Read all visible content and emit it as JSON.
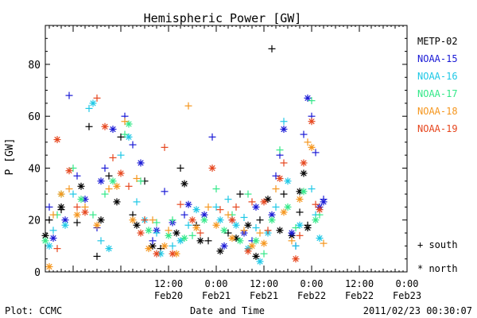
{
  "page": {
    "footer_left": "Plot: CCMC",
    "footer_right": "2011/02/23 00:30:07"
  },
  "chart_data": {
    "type": "scatter",
    "title": "Hemispheric Power [GW]",
    "xlabel": "Date and Time",
    "ylabel": "P [GW]",
    "ylim": [
      0,
      95
    ],
    "y_ticks": [
      0,
      20,
      40,
      60,
      80
    ],
    "xlim": [
      "2011-02-19T05:00",
      "2011-02-23T00:00"
    ],
    "x_tick_labels": [
      {
        "time": "12:00",
        "date": "Feb20",
        "t": "2011-02-20T12:00"
      },
      {
        "time": "0:00",
        "date": "Feb21",
        "t": "2011-02-21T00:00"
      },
      {
        "time": "12:00",
        "date": "Feb21",
        "t": "2011-02-21T12:00"
      },
      {
        "time": "0:00",
        "date": "Feb22",
        "t": "2011-02-22T00:00"
      },
      {
        "time": "12:00",
        "date": "Feb22",
        "t": "2011-02-22T12:00"
      },
      {
        "time": "0:00",
        "date": "Feb23",
        "t": "2011-02-23T00:00"
      }
    ],
    "grid": false,
    "legend_position": "right",
    "marker_legend": [
      {
        "label": "+ south",
        "marker": "+"
      },
      {
        "label": "* north",
        "marker": "*"
      }
    ],
    "series": [
      {
        "name": "METP-02",
        "color": "#000000",
        "south": [
          {
            "x": "2011-02-19T06:00",
            "y": 20
          },
          {
            "x": "2011-02-19T09:00",
            "y": 24
          },
          {
            "x": "2011-02-19T13:00",
            "y": 19
          },
          {
            "x": "2011-02-19T16:00",
            "y": 56
          },
          {
            "x": "2011-02-19T18:00",
            "y": 6
          },
          {
            "x": "2011-02-19T21:00",
            "y": 37
          },
          {
            "x": "2011-02-20T00:00",
            "y": 52
          },
          {
            "x": "2011-02-20T03:00",
            "y": 22
          },
          {
            "x": "2011-02-20T06:00",
            "y": 35
          },
          {
            "x": "2011-02-20T10:00",
            "y": 9
          },
          {
            "x": "2011-02-20T15:00",
            "y": 40
          },
          {
            "x": "2011-02-20T19:00",
            "y": 18
          },
          {
            "x": "2011-02-20T22:00",
            "y": 12
          },
          {
            "x": "2011-02-21T03:00",
            "y": 15
          },
          {
            "x": "2011-02-21T06:00",
            "y": 30
          },
          {
            "x": "2011-02-21T11:00",
            "y": 20
          },
          {
            "x": "2011-02-21T14:00",
            "y": 86
          },
          {
            "x": "2011-02-21T17:00",
            "y": 30
          },
          {
            "x": "2011-02-21T21:00",
            "y": 23
          },
          {
            "x": "2011-02-21T23:00",
            "y": 18
          }
        ],
        "north": [
          {
            "x": "2011-02-19T05:00",
            "y": 14
          },
          {
            "x": "2011-02-19T09:00",
            "y": 25
          },
          {
            "x": "2011-02-19T14:00",
            "y": 33
          },
          {
            "x": "2011-02-19T19:00",
            "y": 20
          },
          {
            "x": "2011-02-19T23:00",
            "y": 27
          },
          {
            "x": "2011-02-20T04:00",
            "y": 18
          },
          {
            "x": "2011-02-20T08:00",
            "y": 10
          },
          {
            "x": "2011-02-20T14:00",
            "y": 15
          },
          {
            "x": "2011-02-20T16:00",
            "y": 34
          },
          {
            "x": "2011-02-20T20:00",
            "y": 12
          },
          {
            "x": "2011-02-21T01:00",
            "y": 8
          },
          {
            "x": "2011-02-21T05:00",
            "y": 13
          },
          {
            "x": "2011-02-21T08:00",
            "y": 18
          },
          {
            "x": "2011-02-21T10:00",
            "y": 6
          },
          {
            "x": "2011-02-21T13:00",
            "y": 28
          },
          {
            "x": "2011-02-21T16:00",
            "y": 16
          },
          {
            "x": "2011-02-21T19:00",
            "y": 14
          },
          {
            "x": "2011-02-21T21:00",
            "y": 31
          },
          {
            "x": "2011-02-21T22:00",
            "y": 38
          },
          {
            "x": "2011-02-21T23:00",
            "y": 17
          }
        ]
      },
      {
        "name": "NOAA-15",
        "color": "#1a1ad6",
        "south": [
          {
            "x": "2011-02-19T06:00",
            "y": 25
          },
          {
            "x": "2011-02-19T11:00",
            "y": 68
          },
          {
            "x": "2011-02-19T13:00",
            "y": 37
          },
          {
            "x": "2011-02-19T18:00",
            "y": 17
          },
          {
            "x": "2011-02-19T20:00",
            "y": 40
          },
          {
            "x": "2011-02-20T01:00",
            "y": 60
          },
          {
            "x": "2011-02-20T03:00",
            "y": 49
          },
          {
            "x": "2011-02-20T08:00",
            "y": 12
          },
          {
            "x": "2011-02-20T11:00",
            "y": 31
          },
          {
            "x": "2011-02-20T16:00",
            "y": 22
          },
          {
            "x": "2011-02-20T23:00",
            "y": 52
          },
          {
            "x": "2011-02-21T04:00",
            "y": 20
          },
          {
            "x": "2011-02-21T09:00",
            "y": 12
          },
          {
            "x": "2011-02-21T15:00",
            "y": 37
          },
          {
            "x": "2011-02-21T16:00",
            "y": 45
          },
          {
            "x": "2011-02-21T20:00",
            "y": 10
          },
          {
            "x": "2011-02-21T22:00",
            "y": 53
          },
          {
            "x": "2011-02-22T00:00",
            "y": 60
          },
          {
            "x": "2011-02-22T01:00",
            "y": 46
          },
          {
            "x": "2011-02-22T03:00",
            "y": 28
          }
        ],
        "north": [
          {
            "x": "2011-02-19T07:00",
            "y": 13
          },
          {
            "x": "2011-02-19T10:00",
            "y": 20
          },
          {
            "x": "2011-02-19T15:00",
            "y": 28
          },
          {
            "x": "2011-02-19T19:00",
            "y": 35
          },
          {
            "x": "2011-02-19T22:00",
            "y": 55
          },
          {
            "x": "2011-02-20T05:00",
            "y": 42
          },
          {
            "x": "2011-02-20T09:00",
            "y": 16
          },
          {
            "x": "2011-02-20T13:00",
            "y": 19
          },
          {
            "x": "2011-02-20T17:00",
            "y": 26
          },
          {
            "x": "2011-02-20T21:00",
            "y": 22
          },
          {
            "x": "2011-02-21T02:00",
            "y": 10
          },
          {
            "x": "2011-02-21T07:00",
            "y": 15
          },
          {
            "x": "2011-02-21T10:00",
            "y": 25
          },
          {
            "x": "2011-02-21T14:00",
            "y": 22
          },
          {
            "x": "2011-02-21T17:00",
            "y": 55
          },
          {
            "x": "2011-02-21T19:00",
            "y": 15
          },
          {
            "x": "2011-02-21T23:00",
            "y": 67
          },
          {
            "x": "2011-02-22T02:00",
            "y": 25
          },
          {
            "x": "2011-02-22T03:00",
            "y": 27
          }
        ]
      },
      {
        "name": "NOAA-16",
        "color": "#1ec8e6",
        "south": [
          {
            "x": "2011-02-19T07:00",
            "y": 16
          },
          {
            "x": "2011-02-19T12:00",
            "y": 30
          },
          {
            "x": "2011-02-19T16:00",
            "y": 63
          },
          {
            "x": "2011-02-19T19:00",
            "y": 12
          },
          {
            "x": "2011-02-20T00:00",
            "y": 45
          },
          {
            "x": "2011-02-20T04:00",
            "y": 27
          },
          {
            "x": "2011-02-20T09:00",
            "y": 15
          },
          {
            "x": "2011-02-20T13:00",
            "y": 10
          },
          {
            "x": "2011-02-20T17:00",
            "y": 18
          },
          {
            "x": "2011-02-21T00:00",
            "y": 25
          },
          {
            "x": "2011-02-21T03:00",
            "y": 28
          },
          {
            "x": "2011-02-21T07:00",
            "y": 21
          },
          {
            "x": "2011-02-21T10:00",
            "y": 17
          },
          {
            "x": "2011-02-21T15:00",
            "y": 25
          },
          {
            "x": "2011-02-21T17:00",
            "y": 58
          },
          {
            "x": "2011-02-21T20:00",
            "y": 10
          },
          {
            "x": "2011-02-22T00:00",
            "y": 32
          },
          {
            "x": "2011-02-22T01:00",
            "y": 22
          }
        ],
        "north": [
          {
            "x": "2011-02-19T06:00",
            "y": 10
          },
          {
            "x": "2011-02-19T10:00",
            "y": 18
          },
          {
            "x": "2011-02-19T17:00",
            "y": 65
          },
          {
            "x": "2011-02-19T21:00",
            "y": 9
          },
          {
            "x": "2011-02-20T02:00",
            "y": 52
          },
          {
            "x": "2011-02-20T06:00",
            "y": 20
          },
          {
            "x": "2011-02-20T10:00",
            "y": 7
          },
          {
            "x": "2011-02-20T15:00",
            "y": 12
          },
          {
            "x": "2011-02-20T19:00",
            "y": 24
          },
          {
            "x": "2011-02-21T01:00",
            "y": 20
          },
          {
            "x": "2011-02-21T05:00",
            "y": 18
          },
          {
            "x": "2011-02-21T08:00",
            "y": 9
          },
          {
            "x": "2011-02-21T11:00",
            "y": 4
          },
          {
            "x": "2011-02-21T13:00",
            "y": 15
          },
          {
            "x": "2011-02-21T18:00",
            "y": 35
          },
          {
            "x": "2011-02-21T21:00",
            "y": 18
          },
          {
            "x": "2011-02-22T02:00",
            "y": 13
          }
        ]
      },
      {
        "name": "NOAA-17",
        "color": "#33e888",
        "south": [
          {
            "x": "2011-02-19T08:00",
            "y": 22
          },
          {
            "x": "2011-02-19T12:00",
            "y": 40
          },
          {
            "x": "2011-02-19T17:00",
            "y": 22
          },
          {
            "x": "2011-02-19T20:00",
            "y": 30
          },
          {
            "x": "2011-02-20T01:00",
            "y": 53
          },
          {
            "x": "2011-02-20T05:00",
            "y": 35
          },
          {
            "x": "2011-02-20T09:00",
            "y": 19
          },
          {
            "x": "2011-02-20T13:00",
            "y": 20
          },
          {
            "x": "2011-02-20T18:00",
            "y": 14
          },
          {
            "x": "2011-02-21T00:00",
            "y": 32
          },
          {
            "x": "2011-02-21T04:00",
            "y": 22
          },
          {
            "x": "2011-02-21T08:00",
            "y": 30
          },
          {
            "x": "2011-02-21T12:00",
            "y": 7
          },
          {
            "x": "2011-02-21T16:00",
            "y": 47
          },
          {
            "x": "2011-02-21T20:00",
            "y": 17
          },
          {
            "x": "2011-02-22T00:00",
            "y": 66
          },
          {
            "x": "2011-02-22T02:00",
            "y": 22
          }
        ],
        "north": [
          {
            "x": "2011-02-19T05:00",
            "y": 12
          },
          {
            "x": "2011-02-19T09:00",
            "y": 30
          },
          {
            "x": "2011-02-19T14:00",
            "y": 28
          },
          {
            "x": "2011-02-19T22:00",
            "y": 35
          },
          {
            "x": "2011-02-20T02:00",
            "y": 57
          },
          {
            "x": "2011-02-20T07:00",
            "y": 16
          },
          {
            "x": "2011-02-20T12:00",
            "y": 14
          },
          {
            "x": "2011-02-20T16:00",
            "y": 13
          },
          {
            "x": "2011-02-20T21:00",
            "y": 20
          },
          {
            "x": "2011-02-21T02:00",
            "y": 16
          },
          {
            "x": "2011-02-21T06:00",
            "y": 12
          },
          {
            "x": "2011-02-21T10:00",
            "y": 12
          },
          {
            "x": "2011-02-21T14:00",
            "y": 20
          },
          {
            "x": "2011-02-21T18:00",
            "y": 25
          },
          {
            "x": "2011-02-21T22:00",
            "y": 31
          },
          {
            "x": "2011-02-22T01:00",
            "y": 20
          }
        ]
      },
      {
        "name": "NOAA-18",
        "color": "#f5961e",
        "south": [
          {
            "x": "2011-02-19T07:00",
            "y": 22
          },
          {
            "x": "2011-02-19T11:00",
            "y": 32
          },
          {
            "x": "2011-02-19T15:00",
            "y": 25
          },
          {
            "x": "2011-02-19T21:00",
            "y": 32
          },
          {
            "x": "2011-02-20T01:00",
            "y": 58
          },
          {
            "x": "2011-02-20T04:00",
            "y": 36
          },
          {
            "x": "2011-02-20T08:00",
            "y": 20
          },
          {
            "x": "2011-02-20T12:00",
            "y": 16
          },
          {
            "x": "2011-02-20T17:00",
            "y": 64
          },
          {
            "x": "2011-02-20T22:00",
            "y": 25
          },
          {
            "x": "2011-02-21T03:00",
            "y": 22
          },
          {
            "x": "2011-02-21T07:00",
            "y": 16
          },
          {
            "x": "2011-02-21T11:00",
            "y": 15
          },
          {
            "x": "2011-02-21T15:00",
            "y": 32
          },
          {
            "x": "2011-02-21T19:00",
            "y": 12
          },
          {
            "x": "2011-02-21T23:00",
            "y": 50
          },
          {
            "x": "2011-02-22T03:00",
            "y": 11
          }
        ],
        "north": [
          {
            "x": "2011-02-19T06:00",
            "y": 2
          },
          {
            "x": "2011-02-19T09:00",
            "y": 30
          },
          {
            "x": "2011-02-19T13:00",
            "y": 22
          },
          {
            "x": "2011-02-19T18:00",
            "y": 18
          },
          {
            "x": "2011-02-19T23:00",
            "y": 33
          },
          {
            "x": "2011-02-20T03:00",
            "y": 20
          },
          {
            "x": "2011-02-20T07:00",
            "y": 9
          },
          {
            "x": "2011-02-20T11:00",
            "y": 10
          },
          {
            "x": "2011-02-20T14:00",
            "y": 7
          },
          {
            "x": "2011-02-20T19:00",
            "y": 17
          },
          {
            "x": "2011-02-21T00:00",
            "y": 18
          },
          {
            "x": "2011-02-21T04:00",
            "y": 13
          },
          {
            "x": "2011-02-21T09:00",
            "y": 10
          },
          {
            "x": "2011-02-21T12:00",
            "y": 11
          },
          {
            "x": "2011-02-21T17:00",
            "y": 23
          },
          {
            "x": "2011-02-21T21:00",
            "y": 28
          },
          {
            "x": "2011-02-22T00:00",
            "y": 48
          }
        ]
      },
      {
        "name": "NOAA-19",
        "color": "#e6461e",
        "south": [
          {
            "x": "2011-02-19T08:00",
            "y": 9
          },
          {
            "x": "2011-02-19T13:00",
            "y": 25
          },
          {
            "x": "2011-02-19T18:00",
            "y": 67
          },
          {
            "x": "2011-02-19T22:00",
            "y": 44
          },
          {
            "x": "2011-02-20T02:00",
            "y": 33
          },
          {
            "x": "2011-02-20T06:00",
            "y": 20
          },
          {
            "x": "2011-02-20T11:00",
            "y": 48
          },
          {
            "x": "2011-02-20T15:00",
            "y": 26
          },
          {
            "x": "2011-02-20T20:00",
            "y": 15
          },
          {
            "x": "2011-02-21T01:00",
            "y": 24
          },
          {
            "x": "2011-02-21T05:00",
            "y": 25
          },
          {
            "x": "2011-02-21T09:00",
            "y": 27
          },
          {
            "x": "2011-02-21T13:00",
            "y": 16
          },
          {
            "x": "2011-02-21T17:00",
            "y": 42
          },
          {
            "x": "2011-02-21T21:00",
            "y": 14
          },
          {
            "x": "2011-02-22T01:00",
            "y": 26
          }
        ],
        "north": [
          {
            "x": "2011-02-19T08:00",
            "y": 51
          },
          {
            "x": "2011-02-19T11:00",
            "y": 39
          },
          {
            "x": "2011-02-19T15:00",
            "y": 23
          },
          {
            "x": "2011-02-19T20:00",
            "y": 56
          },
          {
            "x": "2011-02-20T00:00",
            "y": 38
          },
          {
            "x": "2011-02-20T05:00",
            "y": 15
          },
          {
            "x": "2011-02-20T09:00",
            "y": 7
          },
          {
            "x": "2011-02-20T13:00",
            "y": 7
          },
          {
            "x": "2011-02-20T18:00",
            "y": 20
          },
          {
            "x": "2011-02-20T23:00",
            "y": 40
          },
          {
            "x": "2011-02-21T04:00",
            "y": 20
          },
          {
            "x": "2011-02-21T08:00",
            "y": 8
          },
          {
            "x": "2011-02-21T12:00",
            "y": 27
          },
          {
            "x": "2011-02-21T16:00",
            "y": 36
          },
          {
            "x": "2011-02-21T20:00",
            "y": 5
          },
          {
            "x": "2011-02-21T22:00",
            "y": 42
          },
          {
            "x": "2011-02-22T00:00",
            "y": 58
          },
          {
            "x": "2011-02-22T02:00",
            "y": 24
          }
        ]
      }
    ]
  }
}
